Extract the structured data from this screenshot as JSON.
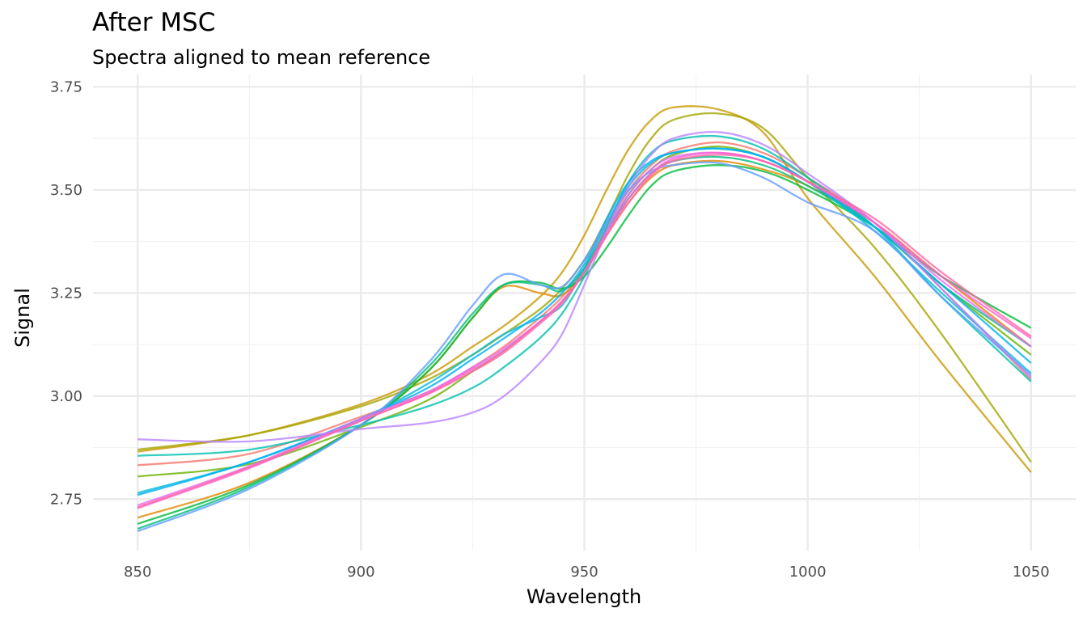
{
  "chart_data": {
    "type": "line",
    "title": "After MSC",
    "subtitle": "Spectra aligned to mean reference",
    "xlabel": "Wavelength",
    "ylabel": "Signal",
    "xlim": [
      840,
      1060
    ],
    "ylim": [
      2.625,
      3.78
    ],
    "xticks": [
      850,
      900,
      950,
      1000,
      1050
    ],
    "xtick_labels": [
      "850",
      "900",
      "950",
      "1000",
      "1050"
    ],
    "yticks": [
      2.75,
      3.0,
      3.25,
      3.5,
      3.75
    ],
    "ytick_labels": [
      "2.75",
      "3.00",
      "3.25",
      "3.50",
      "3.75"
    ],
    "grid": true,
    "legend": "none",
    "x": [
      850,
      875,
      900,
      915,
      925,
      932,
      940,
      945,
      950,
      955,
      960,
      965,
      970,
      980,
      990,
      1000,
      1015,
      1030,
      1050
    ],
    "series": [
      {
        "color": "#F8766D",
        "values": [
          2.832,
          2.86,
          2.95,
          3.01,
          3.07,
          3.12,
          3.19,
          3.24,
          3.31,
          3.41,
          3.5,
          3.56,
          3.595,
          3.615,
          3.59,
          3.53,
          3.42,
          3.26,
          3.04
        ]
      },
      {
        "color": "#E58700",
        "values": [
          2.705,
          2.79,
          2.93,
          3.06,
          3.19,
          3.265,
          3.25,
          3.245,
          3.3,
          3.39,
          3.47,
          3.53,
          3.56,
          3.57,
          3.55,
          3.51,
          3.42,
          3.29,
          3.12
        ]
      },
      {
        "color": "#C99800",
        "values": [
          2.865,
          2.905,
          2.98,
          3.05,
          3.12,
          3.17,
          3.24,
          3.3,
          3.39,
          3.5,
          3.6,
          3.67,
          3.7,
          3.695,
          3.64,
          3.48,
          3.29,
          3.08,
          2.815
        ]
      },
      {
        "color": "#A3A500",
        "values": [
          2.87,
          2.905,
          2.975,
          3.04,
          3.1,
          3.15,
          3.21,
          3.26,
          3.33,
          3.43,
          3.54,
          3.625,
          3.67,
          3.685,
          3.65,
          3.53,
          3.36,
          3.15,
          2.84
        ]
      },
      {
        "color": "#6BB100",
        "values": [
          2.805,
          2.835,
          2.925,
          2.99,
          3.06,
          3.11,
          3.18,
          3.23,
          3.3,
          3.4,
          3.49,
          3.55,
          3.585,
          3.605,
          3.58,
          3.52,
          3.41,
          3.27,
          3.1
        ]
      },
      {
        "color": "#00BA38",
        "values": [
          2.69,
          2.785,
          2.93,
          3.06,
          3.19,
          3.27,
          3.275,
          3.26,
          3.29,
          3.36,
          3.44,
          3.51,
          3.545,
          3.56,
          3.545,
          3.5,
          3.41,
          3.29,
          3.165
        ]
      },
      {
        "color": "#00BF7D",
        "values": [
          2.678,
          2.78,
          2.93,
          3.07,
          3.2,
          3.27,
          3.27,
          3.255,
          3.31,
          3.4,
          3.48,
          3.54,
          3.57,
          3.58,
          3.56,
          3.51,
          3.41,
          3.27,
          3.12
        ]
      },
      {
        "color": "#00C0AF",
        "values": [
          2.855,
          2.87,
          2.93,
          2.975,
          3.02,
          3.07,
          3.14,
          3.2,
          3.29,
          3.41,
          3.52,
          3.59,
          3.62,
          3.63,
          3.6,
          3.53,
          3.41,
          3.24,
          3.035
        ]
      },
      {
        "color": "#00BCD8",
        "values": [
          2.765,
          2.84,
          2.945,
          3.03,
          3.1,
          3.15,
          3.19,
          3.22,
          3.31,
          3.42,
          3.51,
          3.565,
          3.59,
          3.6,
          3.58,
          3.52,
          3.4,
          3.25,
          3.055
        ]
      },
      {
        "color": "#00B0F6",
        "values": [
          2.76,
          2.84,
          2.945,
          3.02,
          3.09,
          3.14,
          3.2,
          3.25,
          3.32,
          3.43,
          3.52,
          3.57,
          3.59,
          3.6,
          3.58,
          3.52,
          3.41,
          3.27,
          3.08
        ]
      },
      {
        "color": "#619CFF",
        "values": [
          2.672,
          2.775,
          2.93,
          3.08,
          3.22,
          3.295,
          3.27,
          3.265,
          3.33,
          3.42,
          3.5,
          3.545,
          3.56,
          3.565,
          3.53,
          3.47,
          3.4,
          3.24,
          3.05
        ]
      },
      {
        "color": "#B983FF",
        "values": [
          2.895,
          2.89,
          2.92,
          2.935,
          2.96,
          3.0,
          3.08,
          3.15,
          3.27,
          3.4,
          3.51,
          3.585,
          3.625,
          3.64,
          3.61,
          3.54,
          3.42,
          3.26,
          3.045
        ]
      },
      {
        "color": "#E76BF3",
        "values": [
          2.735,
          2.83,
          2.945,
          3.01,
          3.07,
          3.115,
          3.18,
          3.23,
          3.3,
          3.4,
          3.49,
          3.55,
          3.58,
          3.59,
          3.57,
          3.52,
          3.42,
          3.28,
          3.12
        ]
      },
      {
        "color": "#FD61D1",
        "values": [
          2.728,
          2.825,
          2.94,
          3.005,
          3.065,
          3.11,
          3.18,
          3.23,
          3.3,
          3.39,
          3.48,
          3.54,
          3.575,
          3.59,
          3.57,
          3.52,
          3.42,
          3.29,
          3.14
        ]
      },
      {
        "color": "#FF67A4",
        "values": [
          2.73,
          2.828,
          2.94,
          3.005,
          3.06,
          3.105,
          3.175,
          3.225,
          3.3,
          3.39,
          3.47,
          3.535,
          3.57,
          3.585,
          3.57,
          3.52,
          3.43,
          3.3,
          3.145
        ]
      }
    ]
  }
}
